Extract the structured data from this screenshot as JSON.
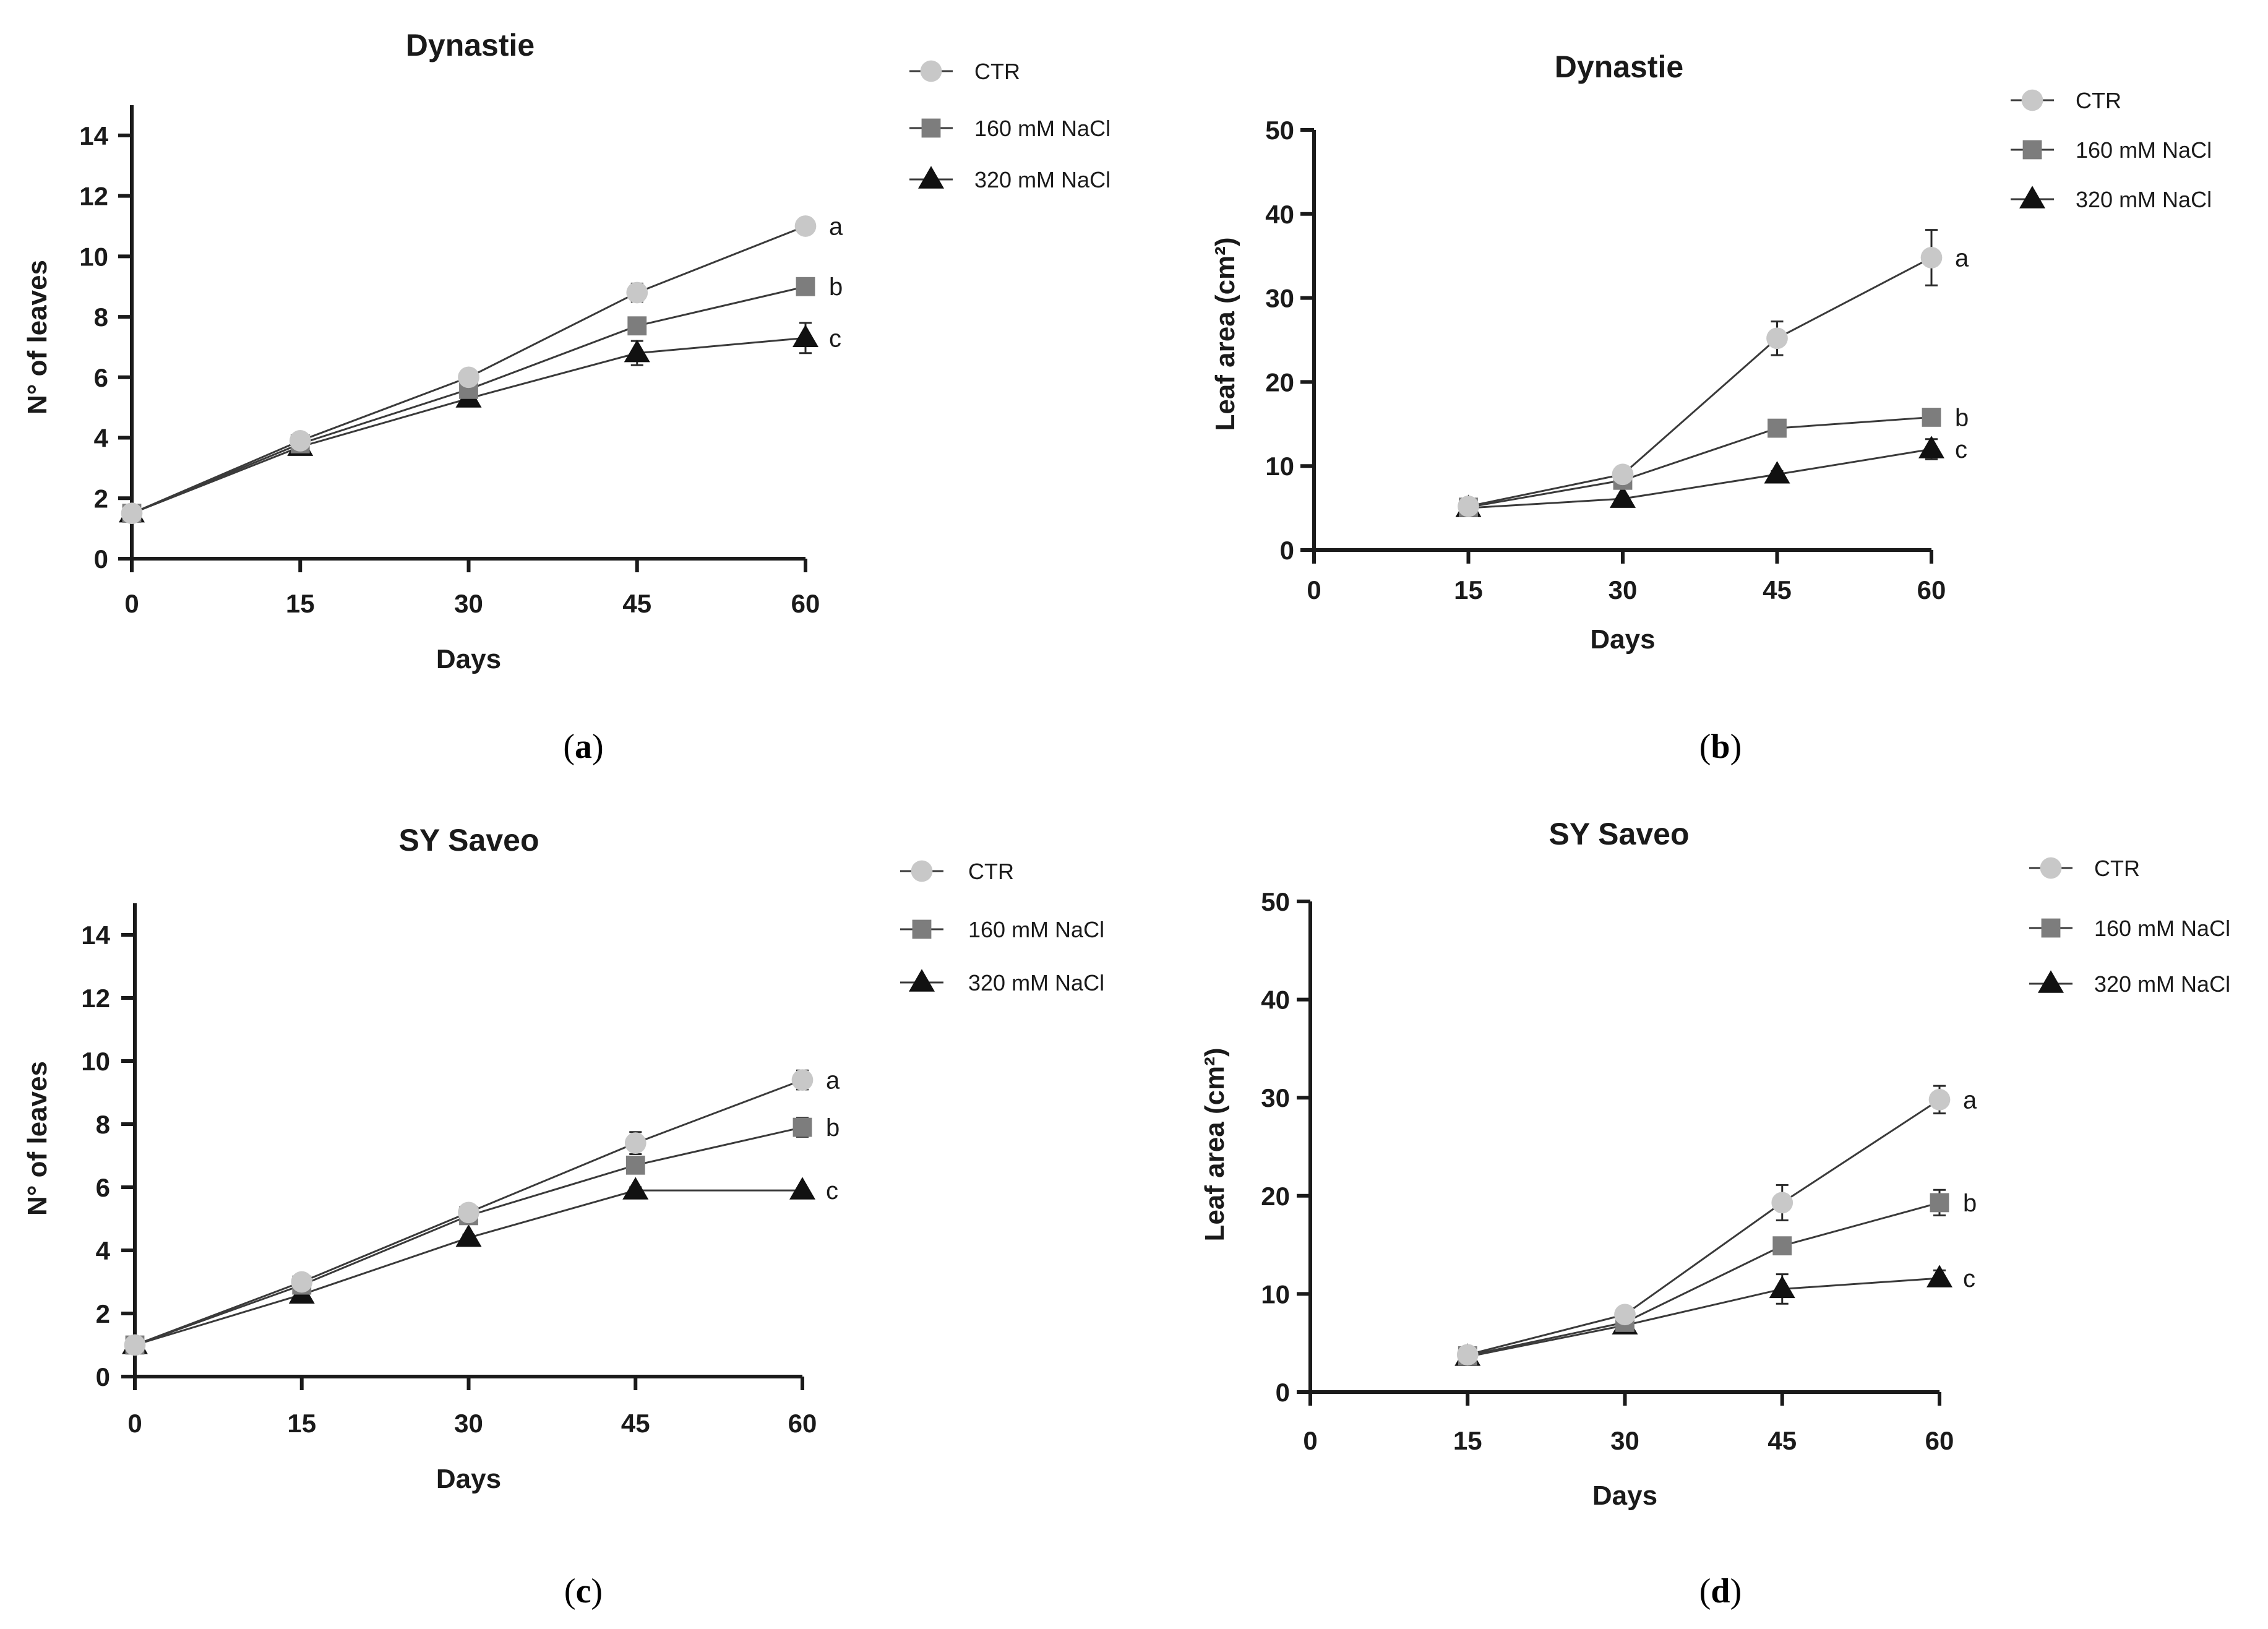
{
  "chart_data": [
    {
      "type": "line",
      "title": "Dynastie",
      "caption": "a",
      "xlabel": "Days",
      "ylabel": "N° of leaves",
      "xlim": [
        0,
        60
      ],
      "ylim": [
        0,
        15
      ],
      "xticks": [
        0,
        15,
        30,
        45,
        60
      ],
      "yticks": [
        0,
        2,
        4,
        6,
        8,
        10,
        12,
        14
      ],
      "series": [
        {
          "name": "CTR",
          "marker": "circle",
          "color": "#c8c8c8",
          "x": [
            0,
            15,
            30,
            45,
            60
          ],
          "values": [
            1.5,
            3.9,
            6.0,
            8.8,
            11.0
          ],
          "errors": [
            0,
            0.1,
            0.15,
            0.3,
            0.25
          ],
          "sig": "a"
        },
        {
          "name": "160 mM NaCl",
          "marker": "square",
          "color": "#7d7d7d",
          "x": [
            0,
            15,
            30,
            45,
            60
          ],
          "values": [
            1.5,
            3.8,
            5.6,
            7.7,
            9.0
          ],
          "errors": [
            0,
            0.1,
            0.15,
            0.2,
            0.1
          ],
          "sig": "b"
        },
        {
          "name": "320 mM NaCl",
          "marker": "triangle",
          "color": "#111111",
          "x": [
            0,
            15,
            30,
            45,
            60
          ],
          "values": [
            1.5,
            3.7,
            5.3,
            6.8,
            7.3
          ],
          "errors": [
            0,
            0.15,
            0.15,
            0.4,
            0.5
          ],
          "sig": "c"
        }
      ]
    },
    {
      "type": "line",
      "title": "Dynastie",
      "caption": "b",
      "xlabel": "Days",
      "ylabel": "Leaf area (cm²)",
      "xlim": [
        0,
        60
      ],
      "ylim": [
        0,
        50
      ],
      "xticks": [
        0,
        15,
        30,
        45,
        60
      ],
      "yticks": [
        0,
        10,
        20,
        30,
        40,
        50
      ],
      "series": [
        {
          "name": "CTR",
          "marker": "circle",
          "color": "#c8c8c8",
          "x": [
            15,
            30,
            45,
            60
          ],
          "values": [
            5.2,
            9.0,
            25.2,
            34.8
          ],
          "errors": [
            0.4,
            0.6,
            2.0,
            3.3
          ],
          "sig": "a"
        },
        {
          "name": "160 mM NaCl",
          "marker": "square",
          "color": "#7d7d7d",
          "x": [
            15,
            30,
            45,
            60
          ],
          "values": [
            5.1,
            8.3,
            14.5,
            15.8
          ],
          "errors": [
            0.3,
            0.5,
            1.0,
            0.4
          ],
          "sig": "b"
        },
        {
          "name": "320 mM NaCl",
          "marker": "triangle",
          "color": "#111111",
          "x": [
            15,
            30,
            45,
            60
          ],
          "values": [
            5.0,
            6.1,
            9.0,
            12.0
          ],
          "errors": [
            0.3,
            0.3,
            0.4,
            1.2
          ],
          "sig": "c"
        }
      ]
    },
    {
      "type": "line",
      "title": "SY Saveo",
      "caption": "c",
      "xlabel": "Days",
      "ylabel": "N° of leaves",
      "xlim": [
        0,
        60
      ],
      "ylim": [
        0,
        15
      ],
      "xticks": [
        0,
        15,
        30,
        45,
        60
      ],
      "yticks": [
        0,
        2,
        4,
        6,
        8,
        10,
        12,
        14
      ],
      "series": [
        {
          "name": "CTR",
          "marker": "circle",
          "color": "#c8c8c8",
          "x": [
            0,
            15,
            30,
            45,
            60
          ],
          "values": [
            1.0,
            3.0,
            5.2,
            7.4,
            9.4
          ],
          "errors": [
            0,
            0.1,
            0.1,
            0.35,
            0.3
          ],
          "sig": "a"
        },
        {
          "name": "160 mM NaCl",
          "marker": "square",
          "color": "#7d7d7d",
          "x": [
            0,
            15,
            30,
            45,
            60
          ],
          "values": [
            1.0,
            2.9,
            5.1,
            6.7,
            7.9
          ],
          "errors": [
            0,
            0.1,
            0.1,
            0.2,
            0.3
          ],
          "sig": "b"
        },
        {
          "name": "320 mM NaCl",
          "marker": "triangle",
          "color": "#111111",
          "x": [
            0,
            15,
            30,
            45,
            60
          ],
          "values": [
            1.0,
            2.6,
            4.4,
            5.9,
            5.9
          ],
          "errors": [
            0,
            0.1,
            0.1,
            0.1,
            0.05
          ],
          "sig": "c"
        }
      ]
    },
    {
      "type": "line",
      "title": "SY Saveo",
      "caption": "d",
      "xlabel": "Days",
      "ylabel": "Leaf area (cm²)",
      "xlim": [
        0,
        60
      ],
      "ylim": [
        0,
        50
      ],
      "xticks": [
        0,
        15,
        30,
        45,
        60
      ],
      "yticks": [
        0,
        10,
        20,
        30,
        40,
        50
      ],
      "series": [
        {
          "name": "CTR",
          "marker": "circle",
          "color": "#c8c8c8",
          "x": [
            15,
            30,
            45,
            60
          ],
          "values": [
            3.8,
            7.9,
            19.3,
            29.8
          ],
          "errors": [
            0.4,
            0.8,
            1.8,
            1.4
          ],
          "sig": "a"
        },
        {
          "name": "160 mM NaCl",
          "marker": "square",
          "color": "#7d7d7d",
          "x": [
            15,
            30,
            45,
            60
          ],
          "values": [
            3.7,
            7.1,
            14.9,
            19.3
          ],
          "errors": [
            0.3,
            0.5,
            0.6,
            1.3
          ],
          "sig": "b"
        },
        {
          "name": "320 mM NaCl",
          "marker": "triangle",
          "color": "#111111",
          "x": [
            15,
            30,
            45,
            60
          ],
          "values": [
            3.6,
            6.8,
            10.5,
            11.6
          ],
          "errors": [
            0.3,
            0.4,
            1.5,
            0.8
          ],
          "sig": "c"
        }
      ]
    }
  ]
}
